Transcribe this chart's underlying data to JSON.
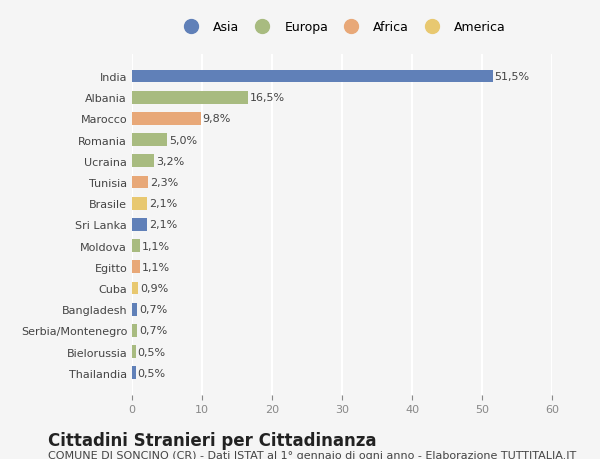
{
  "countries": [
    "India",
    "Albania",
    "Marocco",
    "Romania",
    "Ucraina",
    "Tunisia",
    "Brasile",
    "Sri Lanka",
    "Moldova",
    "Egitto",
    "Cuba",
    "Bangladesh",
    "Serbia/Montenegro",
    "Bielorussia",
    "Thailandia"
  ],
  "values": [
    51.5,
    16.5,
    9.8,
    5.0,
    3.2,
    2.3,
    2.1,
    2.1,
    1.1,
    1.1,
    0.9,
    0.7,
    0.7,
    0.5,
    0.5
  ],
  "labels": [
    "51,5%",
    "16,5%",
    "9,8%",
    "5,0%",
    "3,2%",
    "2,3%",
    "2,1%",
    "2,1%",
    "1,1%",
    "1,1%",
    "0,9%",
    "0,7%",
    "0,7%",
    "0,5%",
    "0,5%"
  ],
  "continents": [
    "Asia",
    "Europa",
    "Africa",
    "Europa",
    "Europa",
    "Africa",
    "America",
    "Asia",
    "Europa",
    "Africa",
    "America",
    "Asia",
    "Europa",
    "Europa",
    "Asia"
  ],
  "continent_colors": {
    "Asia": "#6080b8",
    "Europa": "#a8bb80",
    "Africa": "#e8a878",
    "America": "#e8c870"
  },
  "legend_order": [
    "Asia",
    "Europa",
    "Africa",
    "America"
  ],
  "title": "Cittadini Stranieri per Cittadinanza",
  "subtitle": "COMUNE DI SONCINO (CR) - Dati ISTAT al 1° gennaio di ogni anno - Elaborazione TUTTITALIA.IT",
  "xlim": [
    0,
    60
  ],
  "xticks": [
    0,
    10,
    20,
    30,
    40,
    50,
    60
  ],
  "background_color": "#f5f5f5",
  "bar_height": 0.6,
  "grid_color": "#ffffff",
  "title_fontsize": 12,
  "subtitle_fontsize": 8,
  "label_fontsize": 8,
  "tick_fontsize": 8
}
